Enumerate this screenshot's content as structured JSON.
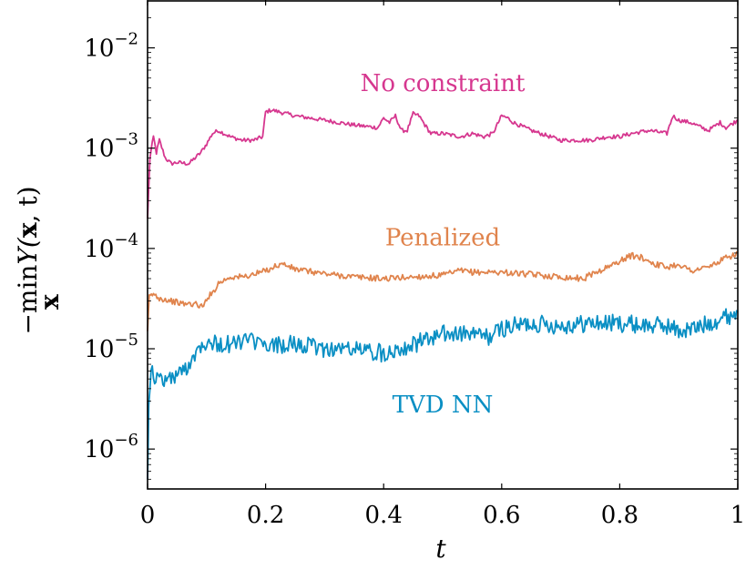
{
  "chart_data": {
    "type": "line",
    "title": "",
    "xlabel": "t",
    "ylabel": {
      "prefix": "−min",
      "subscript": "x",
      "main": "Y(",
      "bold": "x",
      "suffix": ", t)"
    },
    "xlim": [
      0,
      1
    ],
    "ylim": [
      4e-07,
      0.03
    ],
    "yscale": "log",
    "grid": false,
    "legend": "none (inline labels)",
    "x_ticks": [
      0,
      0.2,
      0.4,
      0.6,
      0.8,
      1
    ],
    "x_tick_labels": [
      "0",
      "0.2",
      "0.4",
      "0.6",
      "0.8",
      "1"
    ],
    "y_ticks": [
      {
        "value": 0.01,
        "base": "10",
        "exp": "−2"
      },
      {
        "value": 0.001,
        "base": "10",
        "exp": "−3"
      },
      {
        "value": 0.0001,
        "base": "10",
        "exp": "−4"
      },
      {
        "value": 1e-05,
        "base": "10",
        "exp": "−5"
      },
      {
        "value": 1e-06,
        "base": "10",
        "exp": "−6"
      }
    ],
    "series": [
      {
        "name": "No constraint",
        "color": "#d6378f",
        "label_at": [
          0.5,
          0.0045
        ],
        "noise": 0.02,
        "x": [
          0,
          0.004,
          0.01,
          0.015,
          0.02,
          0.03,
          0.04,
          0.05,
          0.07,
          0.09,
          0.1,
          0.11,
          0.12,
          0.14,
          0.16,
          0.18,
          0.195,
          0.2,
          0.21,
          0.25,
          0.3,
          0.35,
          0.39,
          0.4,
          0.41,
          0.42,
          0.43,
          0.44,
          0.45,
          0.46,
          0.47,
          0.48,
          0.5,
          0.53,
          0.55,
          0.57,
          0.585,
          0.6,
          0.61,
          0.62,
          0.65,
          0.7,
          0.75,
          0.78,
          0.8,
          0.82,
          0.85,
          0.88,
          0.89,
          0.9,
          0.92,
          0.95,
          0.97,
          0.98,
          1.0
        ],
        "y": [
          0.0002,
          0.0008,
          0.0013,
          0.0009,
          0.0012,
          0.0008,
          0.0007,
          0.00072,
          0.0007,
          0.0009,
          0.0011,
          0.0014,
          0.0015,
          0.0013,
          0.0012,
          0.0012,
          0.0013,
          0.0023,
          0.0024,
          0.0021,
          0.0019,
          0.0017,
          0.0016,
          0.002,
          0.0018,
          0.0021,
          0.0015,
          0.0015,
          0.0022,
          0.0021,
          0.0017,
          0.0014,
          0.0014,
          0.0013,
          0.0014,
          0.0013,
          0.0014,
          0.0021,
          0.002,
          0.0018,
          0.0015,
          0.0012,
          0.0012,
          0.0013,
          0.0013,
          0.0014,
          0.0015,
          0.0014,
          0.0021,
          0.0019,
          0.0018,
          0.0015,
          0.0018,
          0.0016,
          0.0019
        ]
      },
      {
        "name": "Penalized",
        "color": "#e0844d",
        "label_at": [
          0.5,
          0.00013
        ],
        "noise": 0.03,
        "x": [
          0,
          0.003,
          0.01,
          0.02,
          0.04,
          0.06,
          0.08,
          0.095,
          0.1,
          0.11,
          0.12,
          0.14,
          0.16,
          0.18,
          0.2,
          0.22,
          0.23,
          0.25,
          0.3,
          0.35,
          0.4,
          0.45,
          0.5,
          0.53,
          0.55,
          0.6,
          0.65,
          0.7,
          0.74,
          0.75,
          0.78,
          0.8,
          0.82,
          0.84,
          0.86,
          0.88,
          0.9,
          0.92,
          0.95,
          0.98,
          1.0
        ],
        "y": [
          1.5e-05,
          3.3e-05,
          3.5e-05,
          3.2e-05,
          3e-05,
          2.8e-05,
          2.8e-05,
          2.6e-05,
          3.2e-05,
          3.6e-05,
          4.5e-05,
          5.2e-05,
          5.2e-05,
          5.5e-05,
          6e-05,
          6.8e-05,
          7e-05,
          6.2e-05,
          5.6e-05,
          5.2e-05,
          5e-05,
          5.2e-05,
          5.4e-05,
          6e-05,
          5.8e-05,
          5.8e-05,
          5.5e-05,
          5.2e-05,
          5e-05,
          5.5e-05,
          6.5e-05,
          7.5e-05,
          8.5e-05,
          8e-05,
          7e-05,
          6.5e-05,
          7e-05,
          6e-05,
          6.5e-05,
          8e-05,
          9e-05
        ]
      },
      {
        "name": "TVD NN",
        "color": "#0a8fc4",
        "label_at": [
          0.5,
          2.8e-06
        ],
        "noise": 0.09,
        "x": [
          0,
          0.002,
          0.006,
          0.01,
          0.02,
          0.04,
          0.06,
          0.07,
          0.08,
          0.09,
          0.1,
          0.12,
          0.14,
          0.16,
          0.18,
          0.2,
          0.22,
          0.25,
          0.3,
          0.35,
          0.4,
          0.42,
          0.45,
          0.5,
          0.55,
          0.58,
          0.6,
          0.65,
          0.7,
          0.75,
          0.8,
          0.85,
          0.88,
          0.9,
          0.93,
          0.96,
          1.0
        ],
        "y": [
          5e-07,
          3e-06,
          7e-06,
          5e-06,
          5e-06,
          5e-06,
          6e-06,
          7e-06,
          9e-06,
          1.1e-05,
          1.2e-05,
          1.1e-05,
          1.1e-05,
          1.2e-05,
          1.2e-05,
          1e-05,
          1.1e-05,
          1.1e-05,
          1e-05,
          1e-05,
          9e-06,
          1e-05,
          1.1e-05,
          1.4e-05,
          1.4e-05,
          1.3e-05,
          1.6e-05,
          1.8e-05,
          1.7e-05,
          1.8e-05,
          1.8e-05,
          1.7e-05,
          1.7e-05,
          1.5e-05,
          1.6e-05,
          1.9e-05,
          2.3e-05
        ]
      }
    ]
  }
}
